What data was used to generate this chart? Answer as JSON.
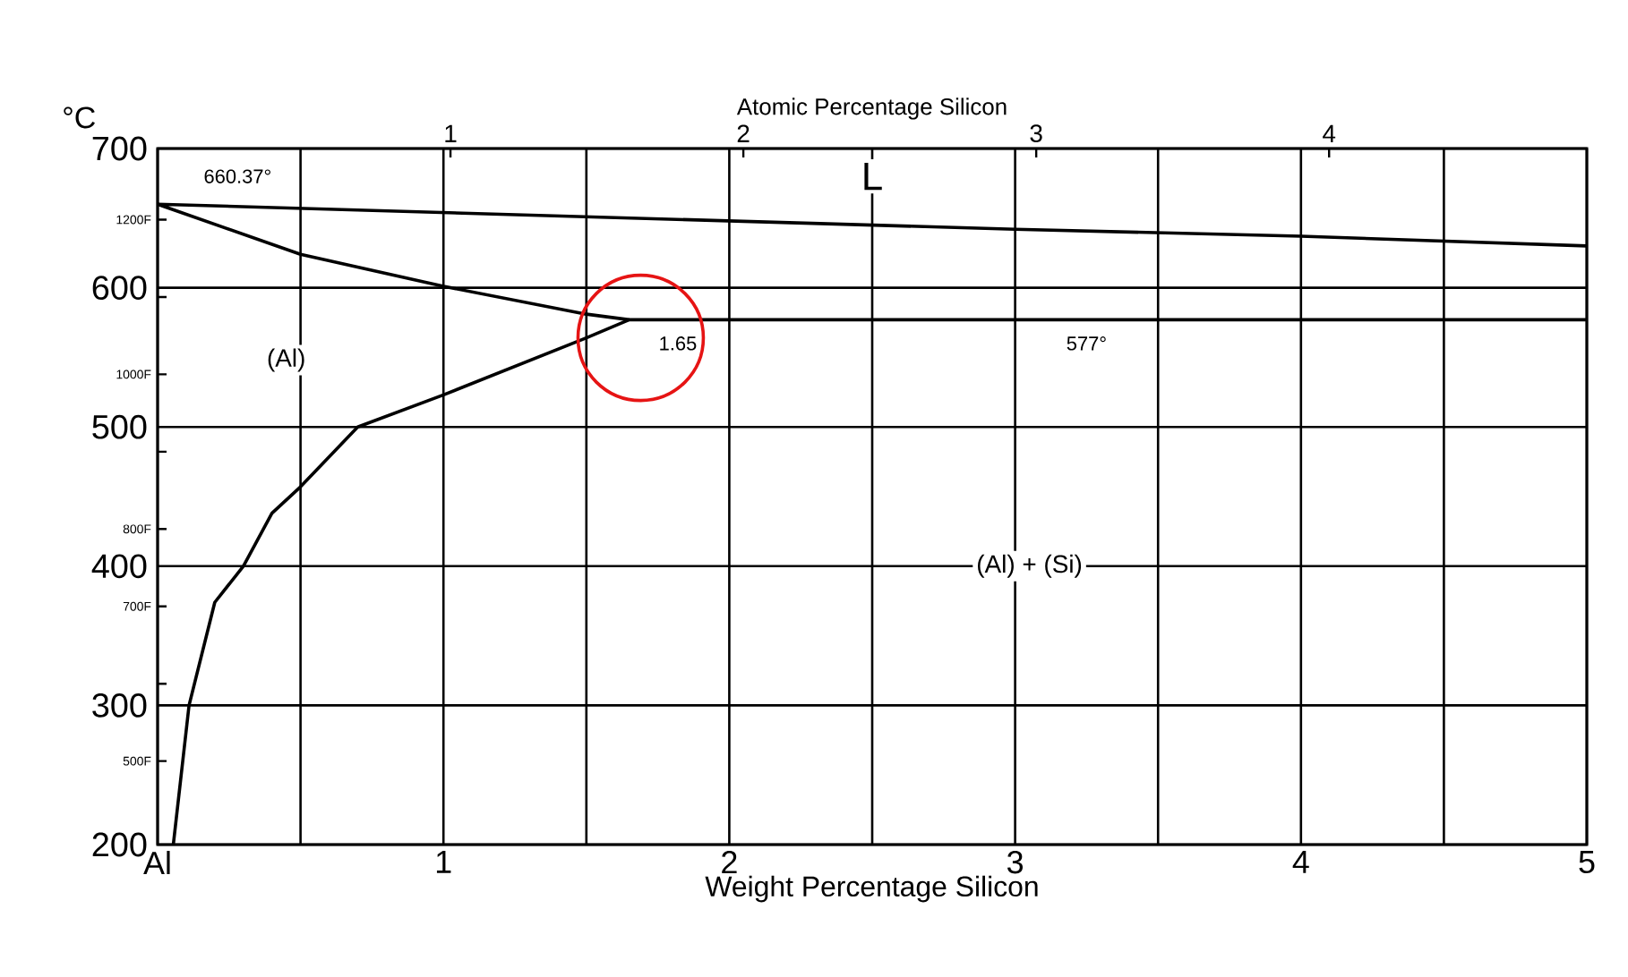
{
  "chart_data": {
    "type": "line",
    "xlabel": "Weight Percentage Silicon",
    "ylabel": "°C",
    "x2label": "Atomic Percentage Silicon",
    "xlim": [
      0,
      5
    ],
    "ylim": [
      200,
      700
    ],
    "xticks": [
      {
        "value": 0,
        "label": "Al"
      },
      {
        "value": 0.5,
        "label": null
      },
      1,
      {
        "value": 1.5,
        "label": null
      },
      2,
      {
        "value": 2.5,
        "label": null
      },
      3,
      {
        "value": 3.5,
        "label": null
      },
      4,
      {
        "value": 4.5,
        "label": null
      },
      5
    ],
    "yticks": [
      200,
      300,
      400,
      500,
      600,
      700
    ],
    "x2lim": [
      0,
      4.88
    ],
    "x2ticks": [
      1,
      2,
      3,
      4
    ],
    "y2lim": [
      392,
      1292
    ],
    "y2ticks": [
      {
        "value": 500,
        "label": "500F"
      },
      {
        "value": 600,
        "label": null
      },
      {
        "value": 700,
        "label": "700F"
      },
      {
        "value": 800,
        "label": "800F"
      },
      {
        "value": 900,
        "label": null
      },
      {
        "value": 1000,
        "label": "1000F"
      },
      {
        "value": 1100,
        "label": null
      },
      {
        "value": 1200,
        "label": "1200F"
      }
    ],
    "grid": true,
    "marker": "none",
    "line_style": "solid",
    "series": [
      {
        "color": "#000000",
        "x": [
          1.65,
          1.5,
          1,
          0.5,
          0,
          1,
          2,
          3,
          4,
          5
        ],
        "values": [
          577,
          581,
          601,
          624,
          660,
          654,
          648,
          642,
          637,
          630
        ]
      },
      {
        "color": "#000000",
        "x": [
          0.055,
          0.11,
          0.2,
          0.3,
          0.4,
          0.5,
          0.7,
          1,
          1.5,
          1.65,
          5
        ],
        "values": [
          200,
          300,
          374,
          400,
          438,
          457,
          500,
          523,
          564,
          577,
          577
        ]
      }
    ],
    "annotations": [
      "660.37°",
      "1.65",
      "577°",
      "L",
      "(Al)",
      "(Al) + (Si)"
    ]
  }
}
